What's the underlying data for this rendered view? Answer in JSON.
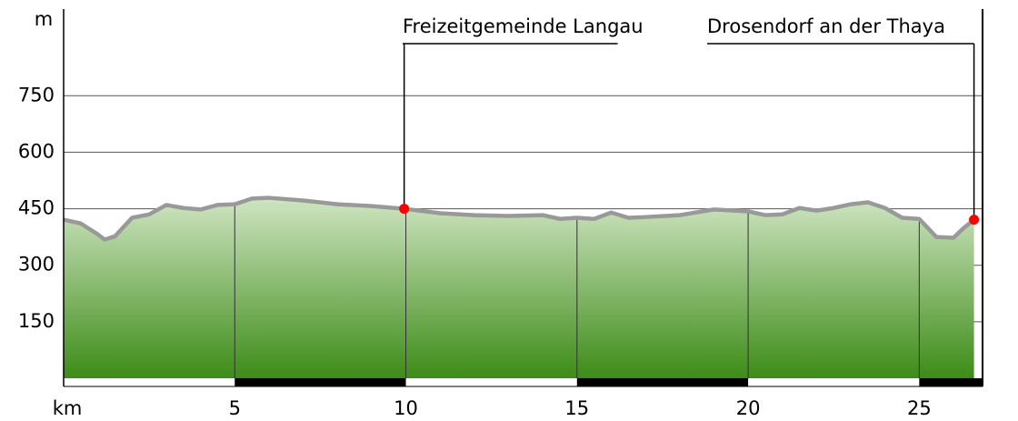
{
  "chart_data": {
    "type": "area",
    "x_label": "km",
    "y_label": "m",
    "x": [
      0,
      0.5,
      1,
      1.2,
      1.5,
      2,
      2.5,
      3,
      3.5,
      4,
      4.5,
      5,
      5.5,
      6,
      7,
      8,
      9,
      9.95,
      11,
      12,
      13,
      14,
      14.5,
      15,
      15.5,
      16,
      16.5,
      17,
      18,
      19,
      20,
      20.5,
      21,
      21.5,
      22,
      22.5,
      23,
      23.5,
      24,
      24.5,
      25,
      25.5,
      26,
      26.3,
      26.6
    ],
    "values": [
      421,
      411,
      382,
      368,
      377,
      426,
      435,
      460,
      452,
      448,
      460,
      462,
      477,
      479,
      472,
      462,
      457,
      450,
      438,
      433,
      431,
      433,
      423,
      426,
      423,
      440,
      426,
      428,
      433,
      448,
      443,
      433,
      435,
      452,
      445,
      452,
      462,
      467,
      452,
      426,
      423,
      375,
      373,
      399,
      421
    ],
    "xlim": [
      0,
      26.85
    ],
    "ylim": [
      0,
      980
    ],
    "xticks": [
      5,
      10,
      15,
      20,
      25
    ],
    "yticks": [
      150,
      300,
      450,
      600,
      750
    ],
    "grid": true,
    "line_color": "#999999",
    "fill_top_color": "#cfe5c2",
    "fill_bottom_color": "#3d8c18",
    "annotations": [
      {
        "text": "Freizeitgemeinde Langau",
        "x": 9.95,
        "y": 450,
        "color": "#ff0000"
      },
      {
        "text": "Drosendorf an der Thaya",
        "x": 26.6,
        "y": 421,
        "color": "#ff0000"
      }
    ]
  }
}
